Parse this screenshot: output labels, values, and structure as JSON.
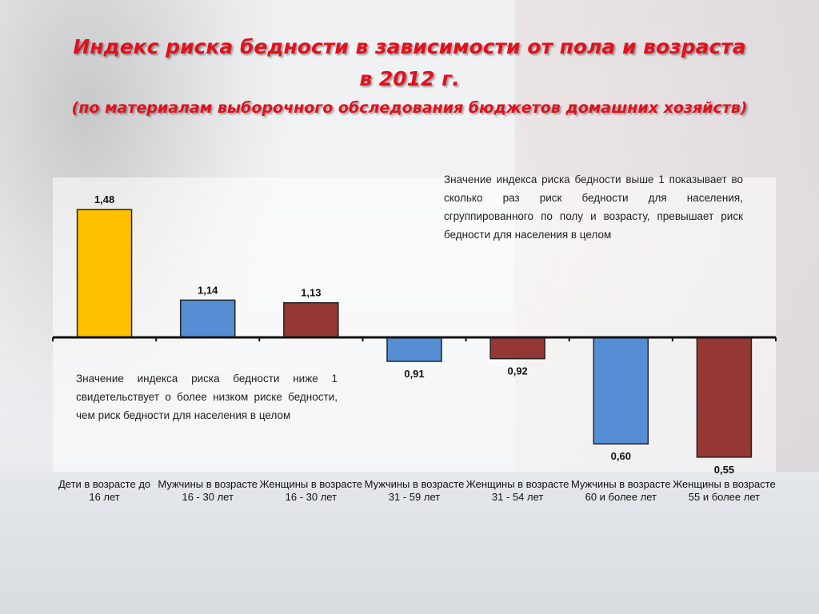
{
  "title": {
    "line1": "Индекс риска бедности в зависимости от пола и возраста",
    "line2": "в 2012 г.",
    "line3": "(по материалам выборочного обследования бюджетов домашних хозяйств)"
  },
  "notes": {
    "above": "Значение индекса риска бедности выше 1 показывает во сколько раз риск бедности для населения, сгруппированного по полу и возрасту, превышает риск бедности для населения в целом",
    "below": "Значение индекса риска бедности ниже 1 свидетельствует о более низком риске бедности, чем риск бедности для населения в целом"
  },
  "chart_data": {
    "type": "bar",
    "title": "Индекс риска бедности в зависимости от пола и возраста в 2012 г.",
    "baseline": 1,
    "categories": [
      "Дети в возрасте до 16 лет",
      "Мужчины в возрасте 16 - 30 лет",
      "Женщины в возрасте 16 - 30 лет",
      "Мужчины в возрасте 31 - 59 лет",
      "Женщины в возрасте 31 - 54 лет",
      "Мужчины в возрасте 60 и более лет",
      "Женщины в возрасте 55 и более лет"
    ],
    "values": [
      1.48,
      1.14,
      1.13,
      0.91,
      0.92,
      0.6,
      0.55
    ],
    "labels": [
      "1,48",
      "1,14",
      "1,13",
      "0,91",
      "0,92",
      "0,60",
      "0,55"
    ],
    "colors": [
      "#ffc000",
      "#558ed5",
      "#953735",
      "#558ed5",
      "#953735",
      "#558ed5",
      "#953735"
    ],
    "ylim": [
      0.5,
      1.5
    ],
    "grid": false
  }
}
